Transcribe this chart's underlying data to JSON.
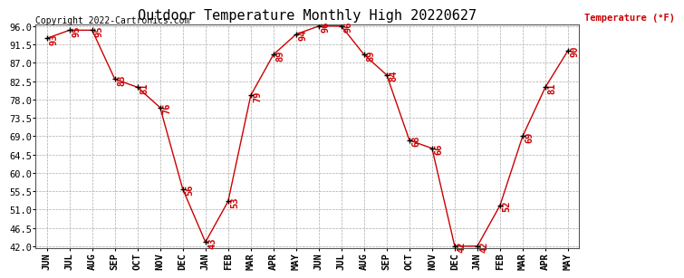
{
  "title": "Outdoor Temperature Monthly High 20220627",
  "ylabel": "Temperature (°F)",
  "copyright_text": "Copyright 2022-Cartronics.com",
  "months": [
    "JUN",
    "JUL",
    "AUG",
    "SEP",
    "OCT",
    "NOV",
    "DEC",
    "JAN",
    "FEB",
    "MAR",
    "APR",
    "MAY",
    "JUN",
    "JUL",
    "AUG",
    "SEP",
    "OCT",
    "NOV",
    "DEC",
    "JAN",
    "FEB",
    "MAR",
    "APR",
    "MAY"
  ],
  "values": [
    93,
    95,
    95,
    83,
    81,
    76,
    56,
    43,
    53,
    79,
    89,
    94,
    96,
    96,
    89,
    84,
    68,
    66,
    42,
    42,
    52,
    69,
    81,
    90
  ],
  "line_color": "#cc0000",
  "marker_color": "#000000",
  "label_color": "#cc0000",
  "title_color": "#000000",
  "ylabel_color": "#cc0000",
  "copyright_color": "#000000",
  "ylim_min": 42.0,
  "ylim_max": 96.0,
  "yticks": [
    42.0,
    46.5,
    51.0,
    55.5,
    60.0,
    64.5,
    69.0,
    73.5,
    78.0,
    82.5,
    87.0,
    91.5,
    96.0
  ],
  "background_color": "#ffffff",
  "grid_color": "#aaaaaa",
  "title_fontsize": 11,
  "label_fontsize": 7.5,
  "tick_fontsize": 7.5,
  "copyright_fontsize": 7
}
